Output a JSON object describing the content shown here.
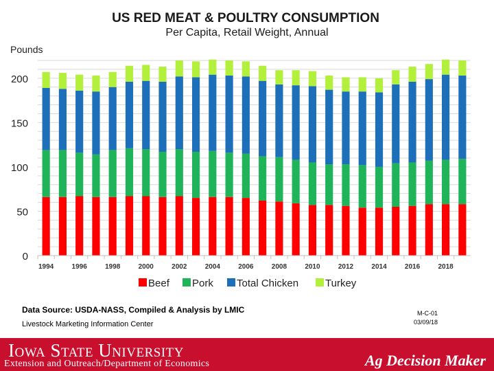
{
  "chart_data": {
    "type": "bar",
    "stacked": true,
    "title": "US RED MEAT & POULTRY CONSUMPTION",
    "subtitle": "Per Capita, Retail Weight, Annual",
    "ylabel": "Pounds",
    "xlabel": "",
    "ylim": [
      0,
      220
    ],
    "yticks": [
      0,
      50,
      100,
      150,
      200
    ],
    "grid": true,
    "legend_position": "bottom",
    "categories": [
      "1994",
      "1995",
      "1996",
      "1997",
      "1998",
      "1999",
      "2000",
      "2001",
      "2002",
      "2003",
      "2004",
      "2005",
      "2006",
      "2007",
      "2008",
      "2009",
      "2010",
      "2011",
      "2012",
      "2013",
      "2014",
      "2015",
      "2016",
      "2017",
      "2018",
      "2019"
    ],
    "xtick_labels": [
      "1994",
      "1996",
      "1998",
      "2000",
      "2002",
      "2004",
      "2006",
      "2008",
      "2010",
      "2012",
      "2014",
      "2016",
      "2018"
    ],
    "series": [
      {
        "name": "Beef",
        "color": "#ff0000",
        "values": [
          66,
          66,
          67,
          66,
          66,
          67,
          67,
          66,
          67,
          65,
          66,
          66,
          65,
          62,
          61,
          59,
          57,
          57,
          56,
          54,
          54,
          55,
          56,
          58,
          58,
          58
        ]
      },
      {
        "name": "Pork",
        "color": "#1fb35a",
        "values": [
          53,
          53,
          49,
          48,
          53,
          54,
          53,
          51,
          53,
          52,
          52,
          50,
          50,
          50,
          50,
          49,
          48,
          46,
          47,
          48,
          46,
          49,
          49,
          49,
          50,
          51
        ]
      },
      {
        "name": "Total Chicken",
        "color": "#1c6fb8",
        "values": [
          70,
          69,
          70,
          71,
          71,
          75,
          77,
          79,
          82,
          84,
          86,
          87,
          87,
          85,
          82,
          84,
          86,
          84,
          82,
          83,
          84,
          89,
          91,
          92,
          96,
          94
        ]
      },
      {
        "name": "Turkey",
        "color": "#b3f03c",
        "values": [
          18,
          18,
          18,
          18,
          17,
          18,
          18,
          17,
          18,
          18,
          17,
          17,
          17,
          17,
          16,
          17,
          17,
          16,
          16,
          16,
          16,
          16,
          17,
          17,
          17,
          17
        ]
      }
    ]
  },
  "notes": {
    "source": "Data Source:  USDA-NASS, Compiled & Analysis by LMIC",
    "org": "Livestock Marketing Information Center",
    "code": "M-C-01",
    "date": "03/09/18"
  },
  "footer": {
    "university": "Iowa State University",
    "department": "Extension and Outreach/Department of Economics",
    "brand": "Ag Decision Maker"
  },
  "colors": {
    "footer_red": "#c8102e",
    "title_text": "#1a1a1a"
  }
}
